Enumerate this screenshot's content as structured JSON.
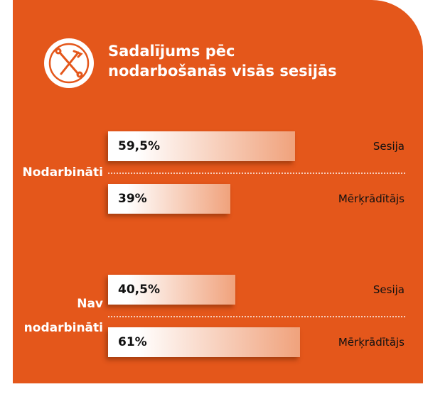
{
  "chart_data": {
    "type": "bar",
    "title": "Sadalījums pēc nodarbošanās visās sesijās",
    "categories": [
      "Nodarbināti",
      "Nav nodarbināti"
    ],
    "series": [
      {
        "name": "Sesija",
        "values": [
          59.5,
          40.5
        ],
        "value_labels": [
          "59,5%",
          "40,5%"
        ]
      },
      {
        "name": "Mērķrādītājs",
        "values": [
          39,
          61
        ],
        "value_labels": [
          "39%",
          "61%"
        ]
      }
    ]
  }
}
